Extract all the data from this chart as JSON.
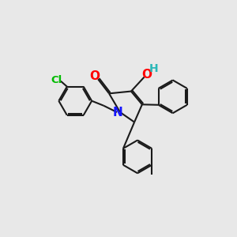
{
  "background_color": "#e8e8e8",
  "bond_color": "#1a1a1a",
  "n_color": "#1414ff",
  "o_color": "#ff0000",
  "cl_color": "#00bb00",
  "h_color": "#2ab8b8",
  "font_size": 10,
  "linewidth": 1.5,
  "dbo": 0.018,
  "figsize": [
    3.0,
    3.0
  ],
  "dpi": 100,
  "xlim": [
    0.0,
    3.0
  ],
  "ylim": [
    0.0,
    3.0
  ]
}
